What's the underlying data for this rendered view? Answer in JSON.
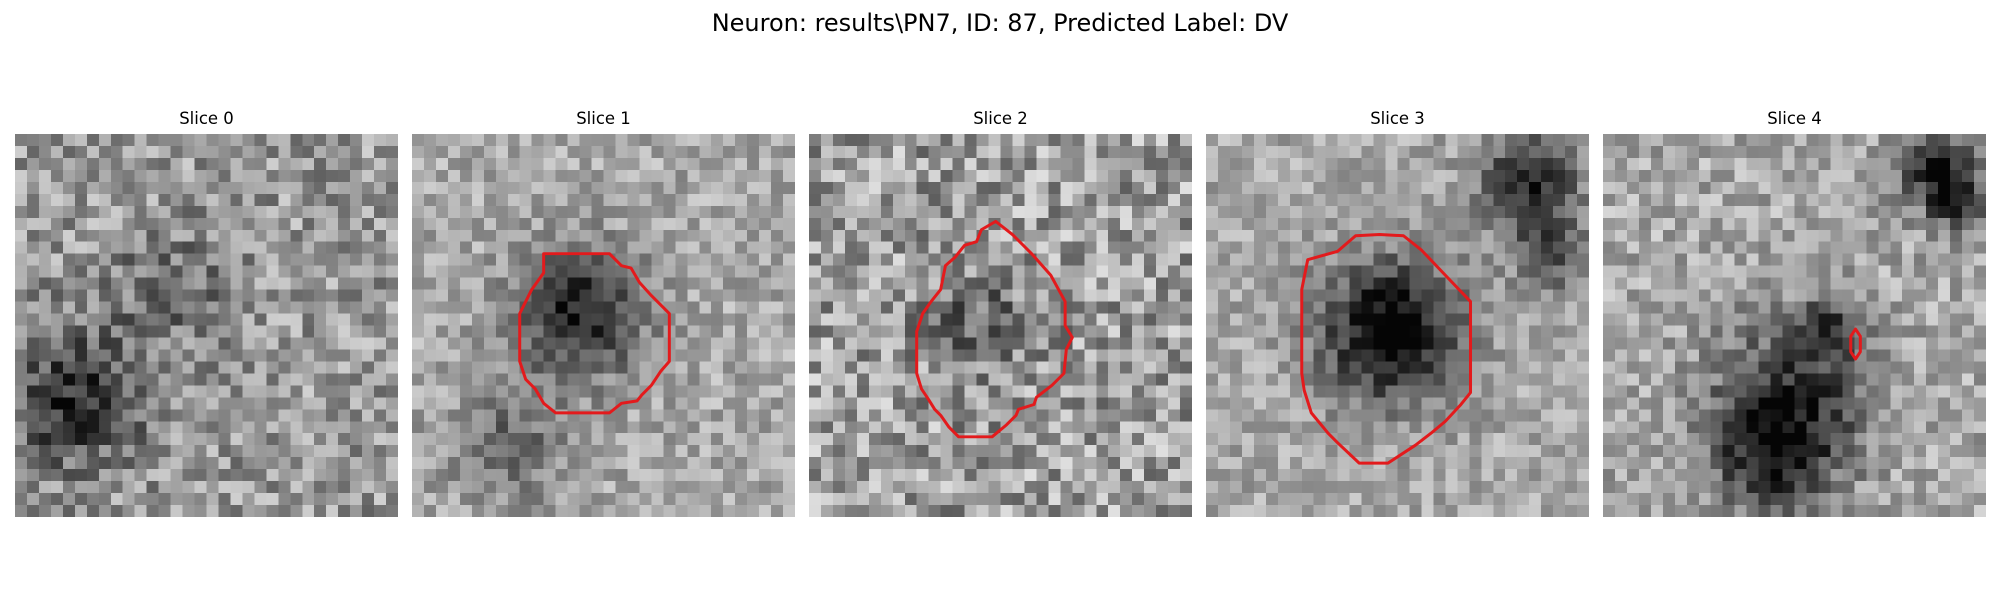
{
  "figure": {
    "title": "Neuron: results\\PN7, ID: 87, Predicted Label: DV"
  },
  "slices": [
    {
      "title": "Slice 0"
    },
    {
      "title": "Slice 1"
    },
    {
      "title": "Slice 2"
    },
    {
      "title": "Slice 3"
    },
    {
      "title": "Slice 4"
    }
  ],
  "colors": {
    "contour": "#e31a1c",
    "background": "#ffffff"
  }
}
